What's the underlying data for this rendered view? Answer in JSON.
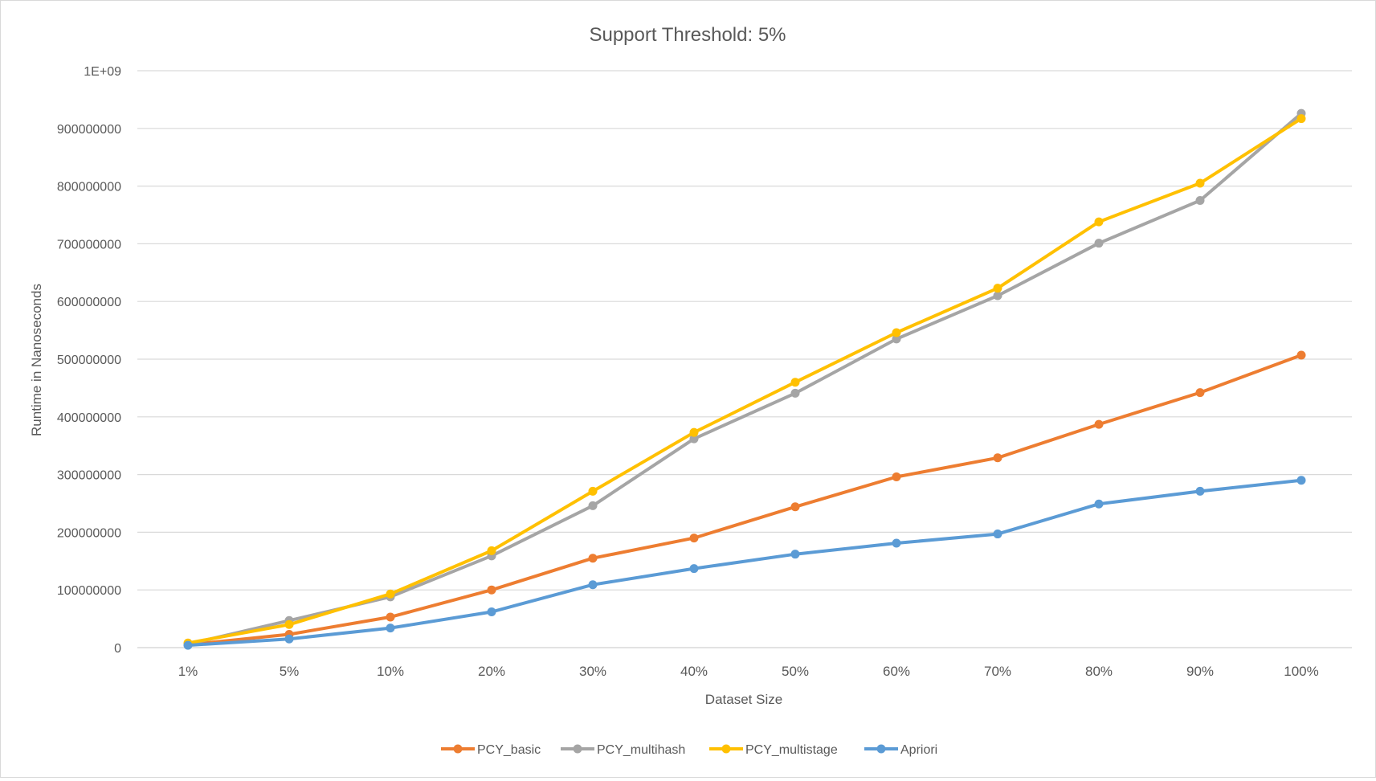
{
  "chart_data": {
    "type": "line",
    "title": "Support Threshold: 5%",
    "xlabel": "Dataset Size",
    "ylabel": "Runtime in Nanoseconds",
    "categories": [
      "1%",
      "5%",
      "10%",
      "20%",
      "30%",
      "40%",
      "50%",
      "60%",
      "70%",
      "80%",
      "90%",
      "100%"
    ],
    "ylim": [
      0,
      1000000000
    ],
    "y_ticks": [
      0,
      100000000,
      200000000,
      300000000,
      400000000,
      500000000,
      600000000,
      700000000,
      800000000,
      900000000,
      1000000000
    ],
    "y_tick_labels": [
      "0",
      "100000000",
      "200000000",
      "300000000",
      "400000000",
      "500000000",
      "600000000",
      "700000000",
      "800000000",
      "900000000",
      "1E+09"
    ],
    "grid": true,
    "legend_position": "bottom",
    "series": [
      {
        "name": "PCY_basic",
        "color": "#ED7D31",
        "values": [
          5000000,
          23000000,
          53000000,
          100000000,
          155000000,
          190000000,
          244000000,
          296000000,
          329000000,
          387000000,
          442000000,
          507000000
        ]
      },
      {
        "name": "PCY_multihash",
        "color": "#A5A5A5",
        "values": [
          6000000,
          47000000,
          88000000,
          159000000,
          246000000,
          362000000,
          441000000,
          535000000,
          610000000,
          701000000,
          775000000,
          926000000
        ]
      },
      {
        "name": "PCY_multistage",
        "color": "#FFC000",
        "values": [
          8000000,
          40000000,
          93000000,
          168000000,
          271000000,
          373000000,
          460000000,
          546000000,
          623000000,
          738000000,
          805000000,
          917000000
        ]
      },
      {
        "name": "Apriori",
        "color": "#5B9BD5",
        "values": [
          4000000,
          15000000,
          34000000,
          62000000,
          109000000,
          137000000,
          162000000,
          181000000,
          197000000,
          249000000,
          271000000,
          290000000
        ]
      }
    ]
  }
}
